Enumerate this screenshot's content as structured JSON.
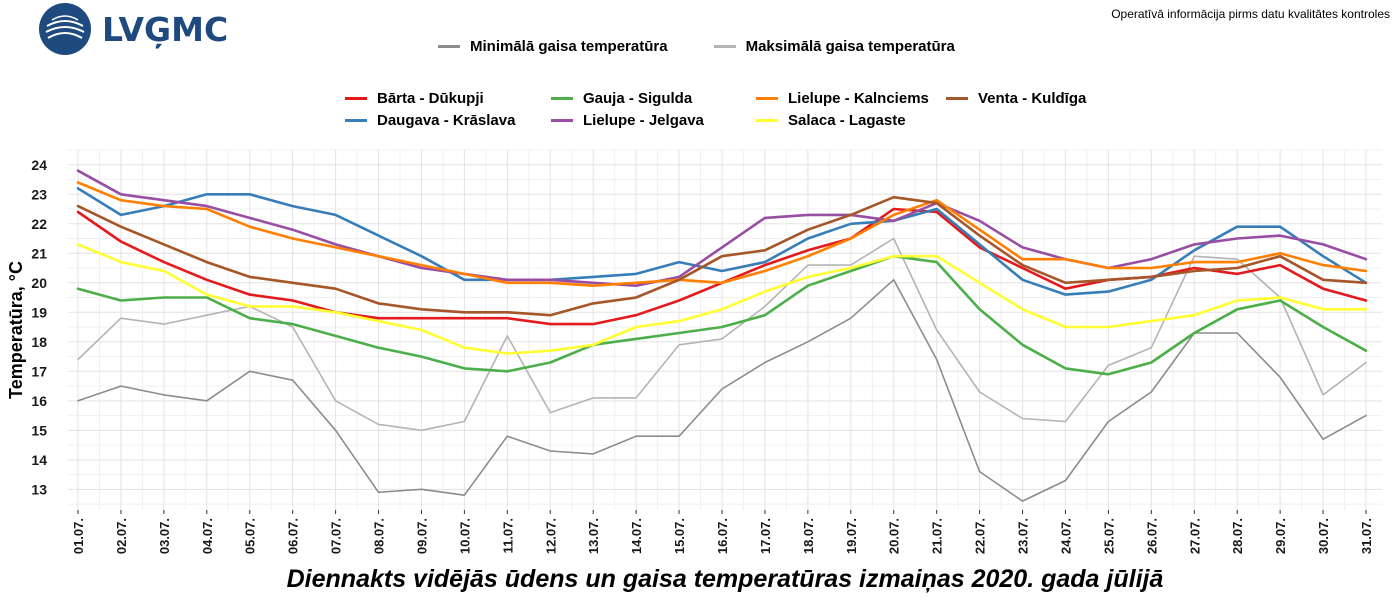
{
  "header": {
    "logo_text": "LVĢMC",
    "disclaimer": "Operatīvā informācija pirms datu kvalitātes kontroles"
  },
  "chart_data": {
    "type": "line",
    "title": "Diennakts vidējās ūdens un gaisa temperatūras izmaiņas 2020. gada jūlijā",
    "xlabel": "",
    "ylabel": "Temperatūra, °C",
    "ylim": [
      12.3,
      24.5
    ],
    "yticks": [
      13,
      14,
      15,
      16,
      17,
      18,
      19,
      20,
      21,
      22,
      23,
      24
    ],
    "grid": true,
    "categories": [
      "01.07.",
      "02.07.",
      "03.07.",
      "04.07.",
      "05.07.",
      "06.07.",
      "07.07.",
      "08.07.",
      "09.07.",
      "10.07.",
      "11.07.",
      "12.07.",
      "13.07.",
      "14.07.",
      "15.07.",
      "16.07.",
      "17.07.",
      "18.07.",
      "19.07.",
      "20.07.",
      "21.07.",
      "22.07.",
      "23.07.",
      "24.07.",
      "25.07.",
      "26.07.",
      "27.07.",
      "28.07.",
      "29.07.",
      "30.07.",
      "31.07."
    ],
    "air_series": [
      {
        "name": "Minimālā gaisa temperatūra",
        "color": "#8c8c8c",
        "values": [
          16.0,
          16.5,
          16.2,
          16.0,
          17.0,
          16.7,
          15.0,
          12.9,
          13.0,
          12.8,
          14.8,
          14.3,
          14.2,
          14.8,
          14.8,
          16.4,
          17.3,
          18.0,
          18.8,
          20.1,
          17.4,
          13.6,
          12.6,
          13.3,
          15.3,
          16.3,
          18.3,
          18.3,
          16.8,
          14.7,
          15.5
        ]
      },
      {
        "name": "Maksimālā gaisa temperatūra",
        "color": "#b4b4b4",
        "values": [
          17.4,
          18.8,
          18.6,
          18.9,
          19.2,
          18.5,
          16.0,
          15.2,
          15.0,
          15.3,
          18.2,
          15.6,
          16.1,
          16.1,
          17.9,
          18.1,
          19.2,
          20.6,
          20.6,
          21.5,
          18.4,
          16.3,
          15.4,
          15.3,
          17.2,
          17.8,
          20.9,
          20.8,
          19.5,
          16.2,
          17.3
        ]
      }
    ],
    "series": [
      {
        "name": "Bārta - Dūkupji",
        "color": "#e41a1c",
        "values": [
          22.4,
          21.4,
          20.7,
          20.1,
          19.6,
          19.4,
          19.0,
          18.8,
          18.8,
          18.8,
          18.8,
          18.6,
          18.6,
          18.9,
          19.4,
          20.0,
          20.6,
          21.1,
          21.5,
          22.5,
          22.4,
          21.2,
          20.5,
          19.8,
          20.1,
          20.2,
          20.5,
          20.3,
          20.6,
          19.8,
          19.4
        ]
      },
      {
        "name": "Daugava - Krāslava",
        "color": "#377eb8",
        "values": [
          23.2,
          22.3,
          22.6,
          23.0,
          23.0,
          22.6,
          22.3,
          21.6,
          20.9,
          20.1,
          20.1,
          20.1,
          20.2,
          20.3,
          20.7,
          20.4,
          20.7,
          21.5,
          22.0,
          22.1,
          22.5,
          21.3,
          20.1,
          19.6,
          19.7,
          20.1,
          21.1,
          21.9,
          21.9,
          20.9,
          20.0
        ]
      },
      {
        "name": "Gauja - Sigulda",
        "color": "#4daf4a",
        "values": [
          19.8,
          19.4,
          19.5,
          19.5,
          18.8,
          18.6,
          18.2,
          17.8,
          17.5,
          17.1,
          17.0,
          17.3,
          17.9,
          18.1,
          18.3,
          18.5,
          18.9,
          19.9,
          20.4,
          20.9,
          20.7,
          19.1,
          17.9,
          17.1,
          16.9,
          17.3,
          18.3,
          19.1,
          19.4,
          18.5,
          17.7
        ]
      },
      {
        "name": "Lielupe - Jelgava",
        "color": "#984ea3",
        "values": [
          23.8,
          23.0,
          22.8,
          22.6,
          22.2,
          21.8,
          21.3,
          20.9,
          20.5,
          20.3,
          20.1,
          20.1,
          20.0,
          19.9,
          20.2,
          21.2,
          22.2,
          22.3,
          22.3,
          22.1,
          22.7,
          22.1,
          21.2,
          20.8,
          20.5,
          20.8,
          21.3,
          21.5,
          21.6,
          21.3,
          20.8
        ]
      },
      {
        "name": "Lielupe - Kalnciems",
        "color": "#ff7f00",
        "values": [
          23.4,
          22.8,
          22.6,
          22.5,
          21.9,
          21.5,
          21.2,
          20.9,
          20.6,
          20.3,
          20.0,
          20.0,
          19.9,
          20.0,
          20.1,
          20.0,
          20.4,
          20.9,
          21.5,
          22.3,
          22.8,
          21.8,
          20.8,
          20.8,
          20.5,
          20.5,
          20.7,
          20.7,
          21.0,
          20.6,
          20.4
        ]
      },
      {
        "name": "Salaca - Lagaste",
        "color": "#ffff33",
        "values": [
          21.3,
          20.7,
          20.4,
          19.6,
          19.2,
          19.2,
          19.0,
          18.7,
          18.4,
          17.8,
          17.6,
          17.7,
          17.9,
          18.5,
          18.7,
          19.1,
          19.7,
          20.2,
          20.5,
          20.9,
          20.9,
          20.0,
          19.1,
          18.5,
          18.5,
          18.7,
          18.9,
          19.4,
          19.5,
          19.1,
          19.1
        ]
      },
      {
        "name": "Venta - Kuldīga",
        "color": "#a65628",
        "values": [
          22.6,
          21.9,
          21.3,
          20.7,
          20.2,
          20.0,
          19.8,
          19.3,
          19.1,
          19.0,
          19.0,
          18.9,
          19.3,
          19.5,
          20.1,
          20.9,
          21.1,
          21.8,
          22.3,
          22.9,
          22.7,
          21.6,
          20.6,
          20.0,
          20.1,
          20.2,
          20.4,
          20.5,
          20.9,
          20.1,
          20.0
        ]
      }
    ]
  }
}
